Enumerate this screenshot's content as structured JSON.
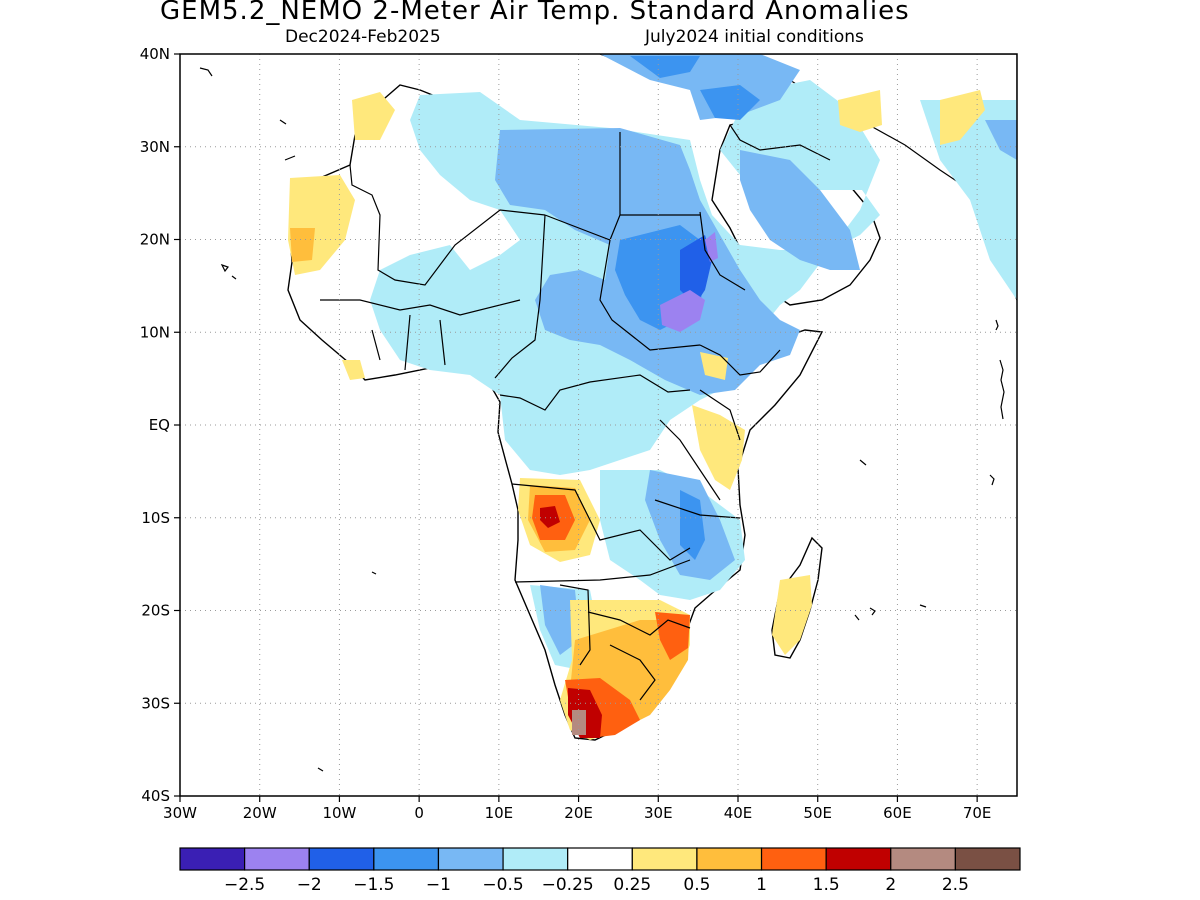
{
  "title": "GEM5.2_NEMO 2-Meter Air Temp. Standard Anomalies",
  "subtitle_left": "Dec2024-Feb2025",
  "subtitle_right": "July2024 initial conditions",
  "map": {
    "region": "Africa",
    "lon_range": [
      -30,
      75
    ],
    "lat_range": [
      -40,
      40
    ],
    "lon_ticks": [
      {
        "value": -30,
        "label": "30W"
      },
      {
        "value": -20,
        "label": "20W"
      },
      {
        "value": -10,
        "label": "10W"
      },
      {
        "value": 0,
        "label": "0"
      },
      {
        "value": 10,
        "label": "10E"
      },
      {
        "value": 20,
        "label": "20E"
      },
      {
        "value": 30,
        "label": "30E"
      },
      {
        "value": 40,
        "label": "40E"
      },
      {
        "value": 50,
        "label": "50E"
      },
      {
        "value": 60,
        "label": "60E"
      },
      {
        "value": 70,
        "label": "70E"
      }
    ],
    "lat_ticks": [
      {
        "value": 40,
        "label": "40N"
      },
      {
        "value": 30,
        "label": "30N"
      },
      {
        "value": 20,
        "label": "20N"
      },
      {
        "value": 10,
        "label": "10N"
      },
      {
        "value": 0,
        "label": "EQ"
      },
      {
        "value": -10,
        "label": "10S"
      },
      {
        "value": -20,
        "label": "20S"
      },
      {
        "value": -30,
        "label": "30S"
      },
      {
        "value": -40,
        "label": "40S"
      }
    ],
    "grid": "dotted"
  },
  "colorbar": {
    "colors": [
      "#3a1fb4",
      "#9c82f0",
      "#2060e8",
      "#3c94f0",
      "#78b8f4",
      "#b0ecf8",
      "#ffffff",
      "#ffe87c",
      "#ffbe3c",
      "#ff6010",
      "#c00000",
      "#b48a80",
      "#7a5044"
    ],
    "labels": [
      "-2.5",
      "-2",
      "-1.5",
      "-1",
      "-0.5",
      "-0.25",
      "0.25",
      "0.5",
      "1",
      "1.5",
      "2",
      "2.5"
    ]
  },
  "land_color": "#ffffff",
  "coast_color": "#000000"
}
